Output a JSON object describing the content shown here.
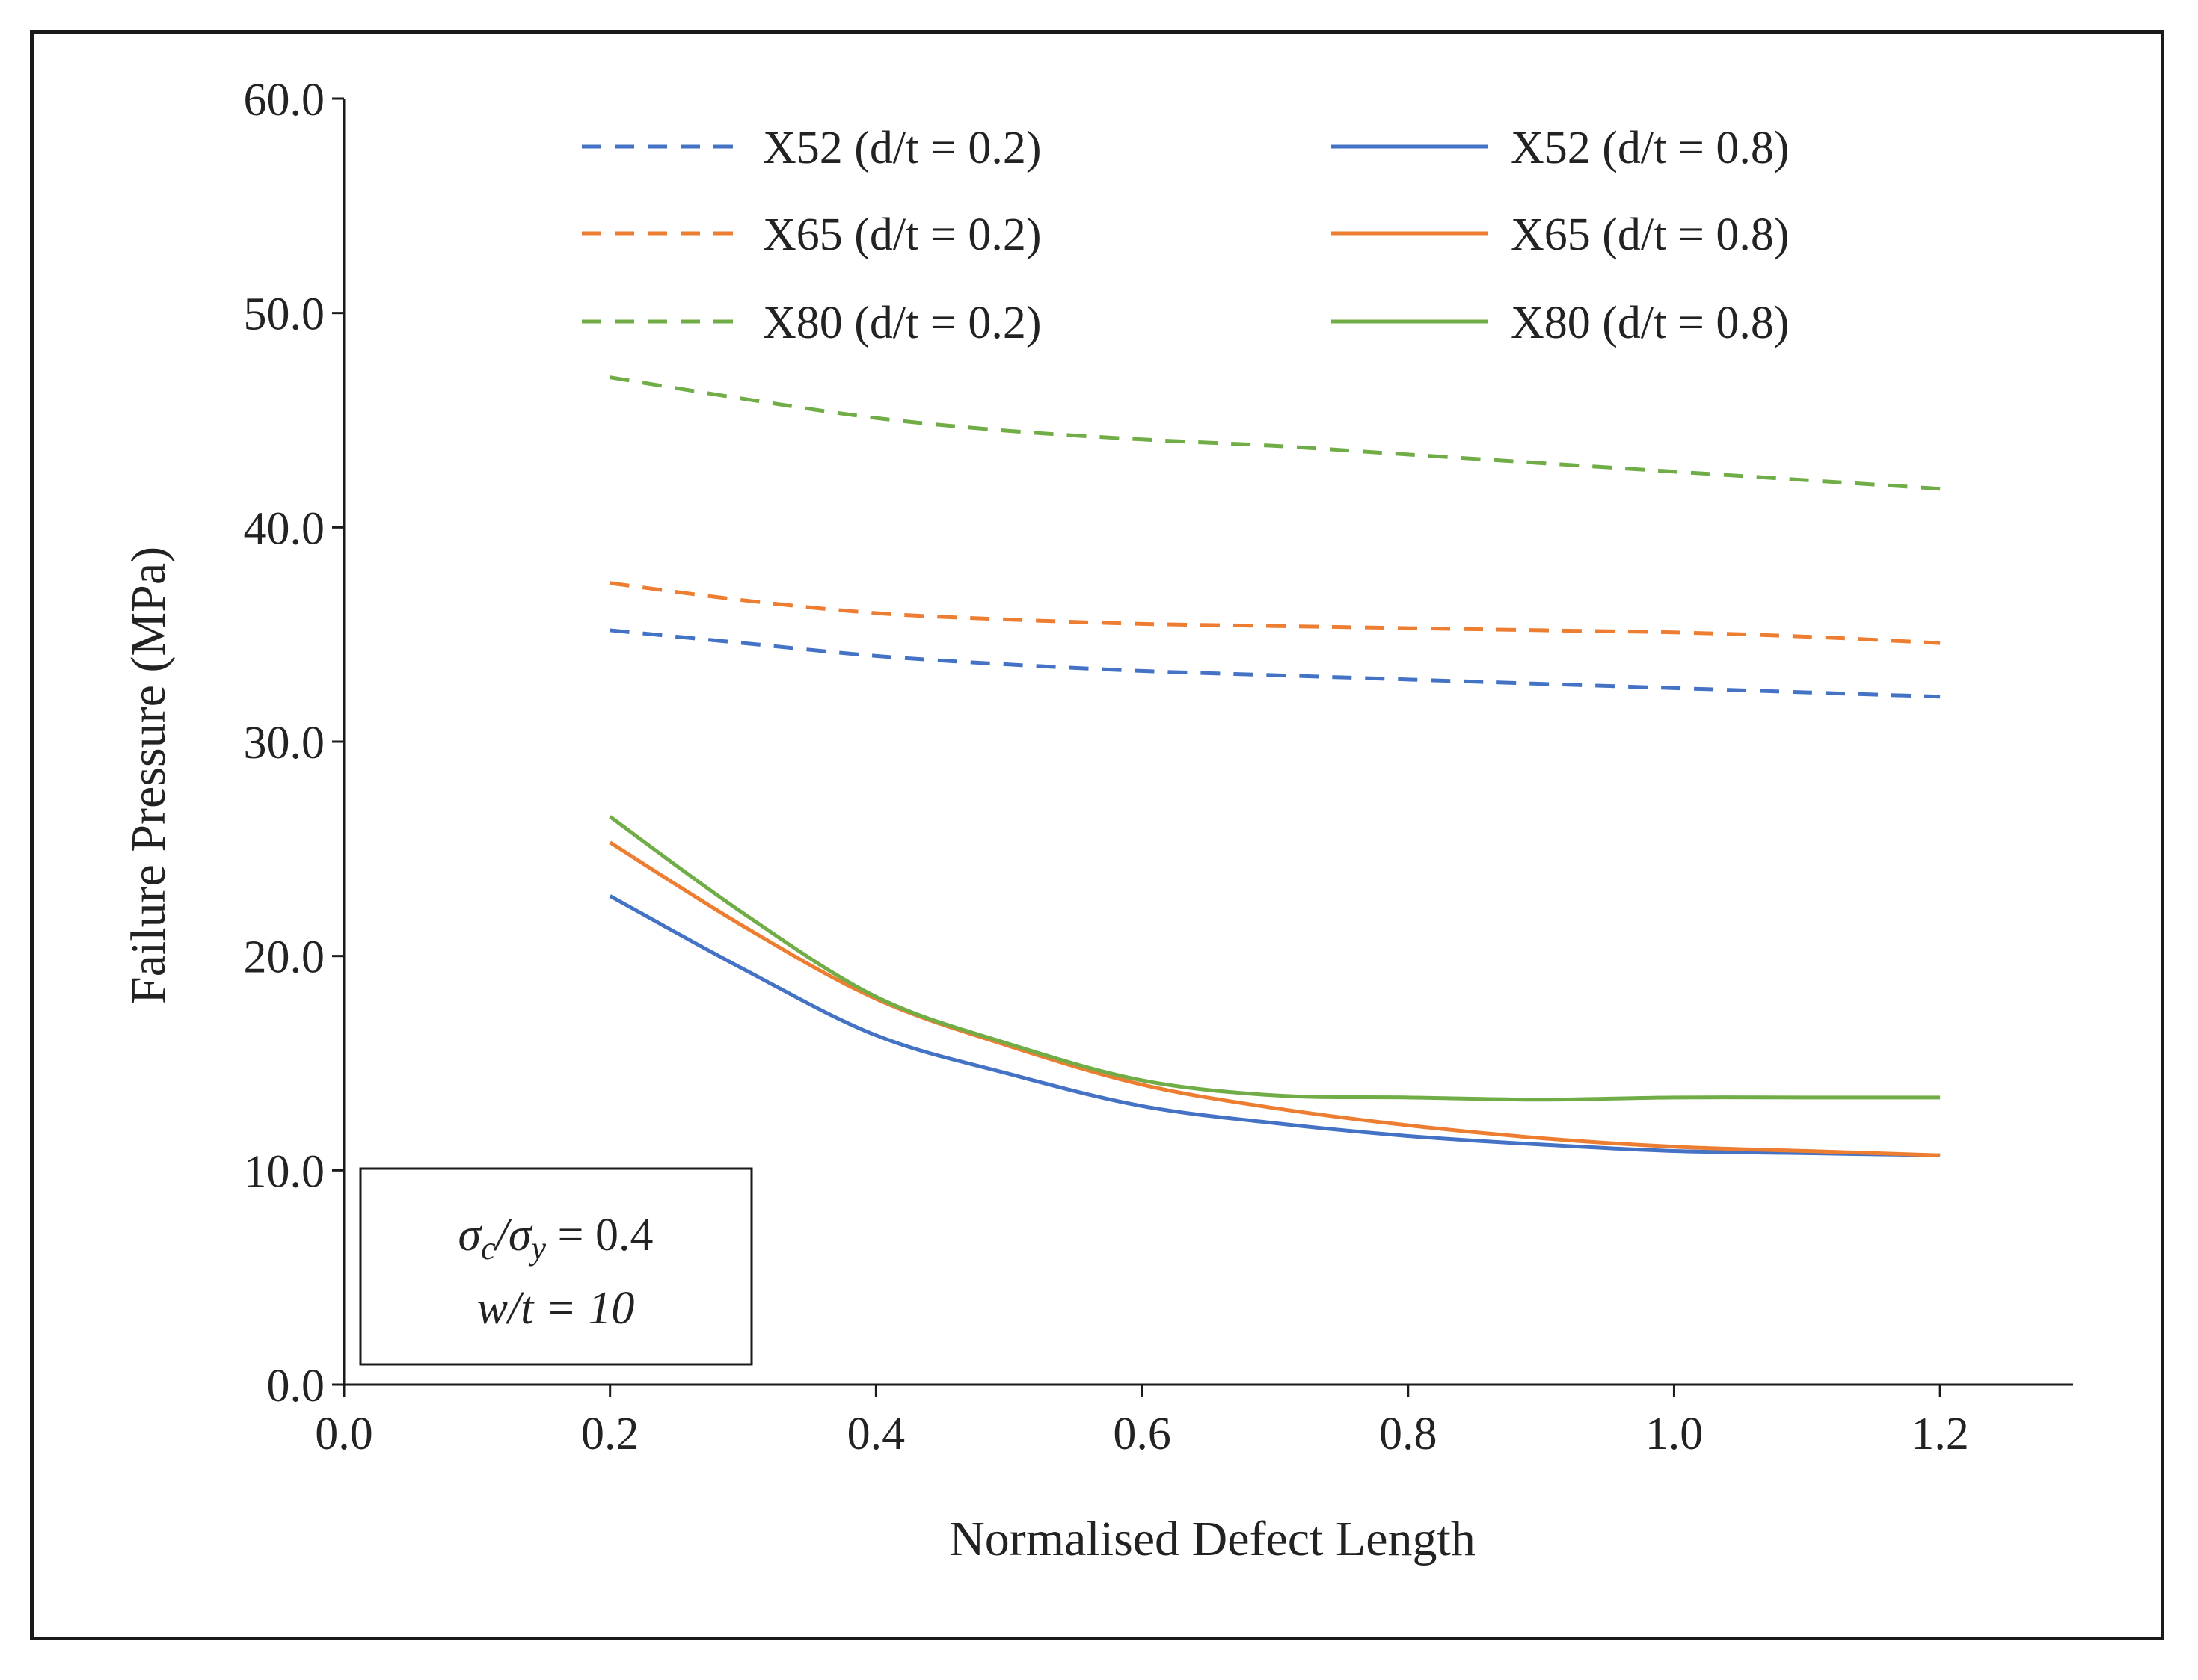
{
  "chart_data": {
    "type": "line",
    "title": "",
    "xlabel": "Normalised Defect Length",
    "ylabel": "Failure Pressure (MPa)",
    "xlim": [
      0.0,
      1.3
    ],
    "ylim": [
      0.0,
      60.0
    ],
    "xticks": [
      "0.0",
      "0.2",
      "0.4",
      "0.6",
      "0.8",
      "1.0",
      "1.2"
    ],
    "yticks": [
      "0.0",
      "10.0",
      "20.0",
      "30.0",
      "40.0",
      "50.0",
      "60.0"
    ],
    "grid": false,
    "legend_position": "top",
    "annotation": {
      "line1_prefix": "σ",
      "line1_sub1": "c",
      "line1_mid": "/σ",
      "line1_sub2": "y",
      "line1_suffix": " = 0.4",
      "line2": "w/t = 10"
    },
    "series": [
      {
        "name": "X52 (d/t = 0.2)",
        "color": "#4472C4",
        "dash": "dashed",
        "x": [
          0.2,
          0.3,
          0.4,
          0.5,
          0.6,
          0.7,
          0.8,
          0.9,
          1.0,
          1.1,
          1.2
        ],
        "y": [
          35.2,
          34.6,
          34.0,
          33.6,
          33.3,
          33.1,
          32.9,
          32.7,
          32.5,
          32.3,
          32.1
        ]
      },
      {
        "name": "X65 (d/t = 0.2)",
        "color": "#ED7D31",
        "dash": "dashed",
        "x": [
          0.2,
          0.3,
          0.4,
          0.5,
          0.6,
          0.7,
          0.8,
          0.9,
          1.0,
          1.1,
          1.2
        ],
        "y": [
          37.4,
          36.6,
          36.0,
          35.7,
          35.5,
          35.4,
          35.3,
          35.2,
          35.1,
          34.9,
          34.6
        ]
      },
      {
        "name": "X80 (d/t = 0.2)",
        "color": "#70AD47",
        "dash": "dashed",
        "x": [
          0.2,
          0.3,
          0.4,
          0.5,
          0.6,
          0.7,
          0.8,
          0.9,
          1.0,
          1.1,
          1.2
        ],
        "y": [
          47.0,
          46.0,
          45.1,
          44.5,
          44.1,
          43.8,
          43.4,
          43.0,
          42.6,
          42.2,
          41.8
        ]
      },
      {
        "name": "X52 (d/t = 0.8)",
        "color": "#4472C4",
        "dash": "solid",
        "x": [
          0.2,
          0.3,
          0.4,
          0.5,
          0.6,
          0.7,
          0.8,
          0.9,
          1.0,
          1.1,
          1.2
        ],
        "y": [
          22.8,
          19.4,
          16.3,
          14.5,
          13.0,
          12.2,
          11.6,
          11.2,
          10.9,
          10.8,
          10.7
        ]
      },
      {
        "name": "X65 (d/t = 0.8)",
        "color": "#ED7D31",
        "dash": "solid",
        "x": [
          0.2,
          0.3,
          0.4,
          0.5,
          0.6,
          0.7,
          0.8,
          0.9,
          1.0,
          1.1,
          1.2
        ],
        "y": [
          25.3,
          21.4,
          18.0,
          15.8,
          14.0,
          12.9,
          12.1,
          11.5,
          11.1,
          10.9,
          10.7
        ]
      },
      {
        "name": "X80 (d/t = 0.8)",
        "color": "#70AD47",
        "dash": "solid",
        "x": [
          0.2,
          0.3,
          0.4,
          0.5,
          0.6,
          0.7,
          0.8,
          0.9,
          1.0,
          1.1,
          1.2
        ],
        "y": [
          26.5,
          22.0,
          18.1,
          15.9,
          14.2,
          13.5,
          13.4,
          13.3,
          13.4,
          13.4,
          13.4
        ]
      }
    ]
  }
}
